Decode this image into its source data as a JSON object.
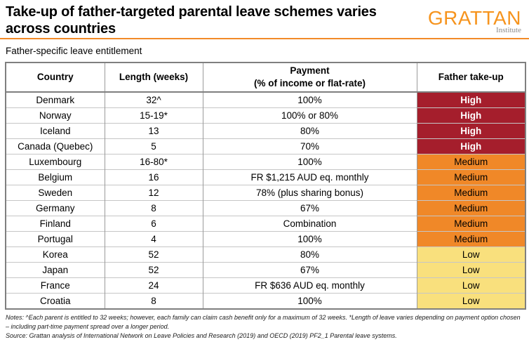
{
  "header": {
    "title": "Take-up of father-targeted parental leave schemes varies across countries",
    "logo_text": "GRATTAN",
    "logo_subtext": "Institute",
    "subtitle": "Father-specific leave entitlement"
  },
  "table_header": {
    "country": "Country",
    "length": "Length (weeks)",
    "payment_line1": "Payment",
    "payment_line2": "(% of income or flat-rate)",
    "takeup": "Father take-up"
  },
  "chart_data": {
    "type": "table",
    "title": "Take-up of father-targeted parental leave schemes varies across countries",
    "subtitle": "Father-specific leave entitlement",
    "columns": [
      "Country",
      "Length (weeks)",
      "Payment (% of income or flat-rate)",
      "Father take-up"
    ],
    "rows": [
      {
        "country": "Denmark",
        "length_weeks": "32^",
        "payment": "100%",
        "father_take_up": "High",
        "level": "high"
      },
      {
        "country": "Norway",
        "length_weeks": "15-19*",
        "payment": "100% or 80%",
        "father_take_up": "High",
        "level": "high"
      },
      {
        "country": "Iceland",
        "length_weeks": "13",
        "payment": "80%",
        "father_take_up": "High",
        "level": "high"
      },
      {
        "country": "Canada (Quebec)",
        "length_weeks": "5",
        "payment": "70%",
        "father_take_up": "High",
        "level": "high"
      },
      {
        "country": "Luxembourg",
        "length_weeks": "16-80*",
        "payment": "100%",
        "father_take_up": "Medium",
        "level": "medium"
      },
      {
        "country": "Belgium",
        "length_weeks": "16",
        "payment": "FR $1,215 AUD eq. monthly",
        "father_take_up": "Medium",
        "level": "medium"
      },
      {
        "country": "Sweden",
        "length_weeks": "12",
        "payment": "78% (plus sharing bonus)",
        "father_take_up": "Medium",
        "level": "medium"
      },
      {
        "country": "Germany",
        "length_weeks": "8",
        "payment": "67%",
        "father_take_up": "Medium",
        "level": "medium"
      },
      {
        "country": "Finland",
        "length_weeks": "6",
        "payment": "Combination",
        "father_take_up": "Medium",
        "level": "medium"
      },
      {
        "country": "Portugal",
        "length_weeks": "4",
        "payment": "100%",
        "father_take_up": "Medium",
        "level": "medium"
      },
      {
        "country": "Korea",
        "length_weeks": "52",
        "payment": "80%",
        "father_take_up": "Low",
        "level": "low"
      },
      {
        "country": "Japan",
        "length_weeks": "52",
        "payment": "67%",
        "father_take_up": "Low",
        "level": "low"
      },
      {
        "country": "France",
        "length_weeks": "24",
        "payment": "FR $636 AUD eq. monthly",
        "father_take_up": "Low",
        "level": "low"
      },
      {
        "country": "Croatia",
        "length_weeks": "8",
        "payment": "100%",
        "father_take_up": "Low",
        "level": "low"
      }
    ],
    "legend_levels": [
      "High",
      "Medium",
      "Low"
    ]
  },
  "colors": {
    "high": "#A51E2C",
    "medium": "#F08828",
    "low": "#F9E07D",
    "accent_rule": "#F28A28",
    "logo_orange": "#F6941E",
    "high_text": "#FFFFFF"
  },
  "footer": {
    "notes": "Notes: ^Each parent is entitled to 32 weeks; however, each family can claim cash benefit only for a maximum of 32 weeks. *Length of leave varies depending on payment option chosen – including part-time payment spread over a longer period.",
    "source": "Source: Grattan analysis of International Network on Leave Policies and Research (2019) and OECD (2019) PF2_1 Parental leave systems."
  }
}
